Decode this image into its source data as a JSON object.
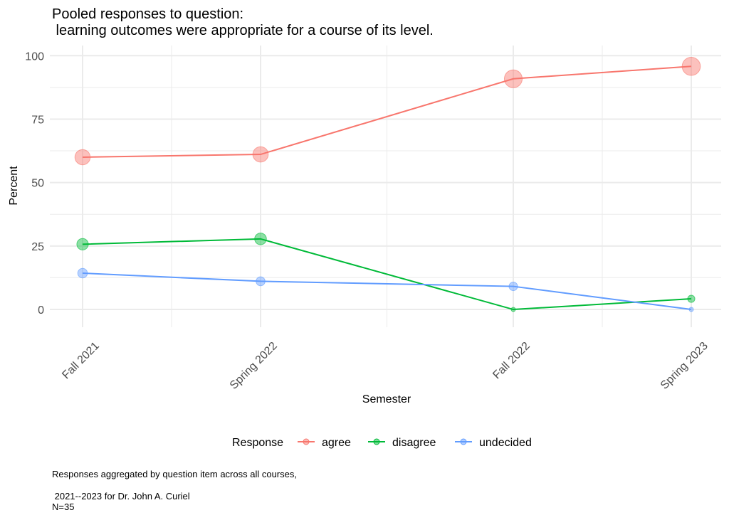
{
  "title_lines": [
    "Pooled responses to question:",
    " learning outcomes were appropriate for a course of its level."
  ],
  "caption_lines": [
    "Responses aggregated by question item across all courses,",
    "",
    " 2021--2023 for Dr. John A. Curiel",
    "N=35"
  ],
  "chart_data": {
    "type": "line",
    "xlabel": "Semester",
    "ylabel": "Percent",
    "categories": [
      "Fall 2021",
      "Spring 2022",
      "Fall 2022",
      "Spring 2023"
    ],
    "x_positions": [
      0,
      1,
      2.42,
      3.42
    ],
    "ylim": [
      -7,
      104
    ],
    "yticks": [
      0,
      25,
      50,
      75,
      100
    ],
    "grid": true,
    "legend_title": "Response",
    "legend_position": "bottom",
    "series": [
      {
        "name": "agree",
        "color": "#F8766D",
        "values": [
          60,
          61.1,
          90.9,
          95.8
        ]
      },
      {
        "name": "disagree",
        "color": "#00BA38",
        "values": [
          25.7,
          27.8,
          0,
          4.2
        ]
      },
      {
        "name": "undecided",
        "color": "#619CFF",
        "values": [
          14.3,
          11.1,
          9.1,
          0
        ]
      }
    ]
  }
}
